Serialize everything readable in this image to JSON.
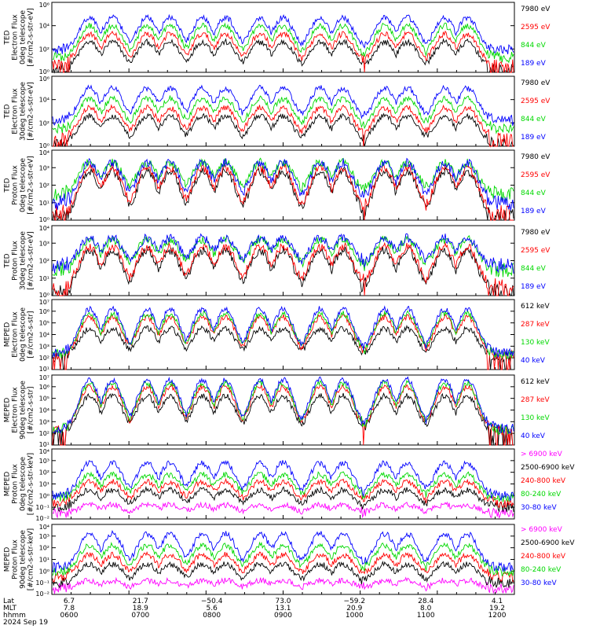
{
  "chart_data": {
    "type": "line",
    "panels": [
      {
        "ylabel": [
          "TED",
          "Electron Flux",
          "0deg telescope",
          "[#/cm2-s-str-eV]"
        ],
        "ylim": [
          1,
          1000000
        ],
        "ylog": true,
        "ytick_labels": [
          "10⁰",
          "10²",
          "10⁴",
          "10⁶"
        ],
        "series": [
          {
            "name": "7980 eV",
            "color": "#000000",
            "base": 0.3,
            "peak": 2.6
          },
          {
            "name": "2595 eV",
            "color": "#ff0000",
            "base": 0.7,
            "peak": 3.3
          },
          {
            "name": "844 eV",
            "color": "#00d800",
            "base": 1.3,
            "peak": 4.0
          },
          {
            "name": "189 eV",
            "color": "#0000ff",
            "base": 1.9,
            "peak": 4.7
          }
        ]
      },
      {
        "ylabel": [
          "TED",
          "Electron Flux",
          "30deg telescope",
          "[#/cm2-s-str-eV]"
        ],
        "ylim": [
          1,
          1000000
        ],
        "ylog": true,
        "ytick_labels": [
          "10⁰",
          "10²",
          "10⁴",
          "10⁶"
        ],
        "series": [
          {
            "name": "7980 eV",
            "color": "#000000",
            "base": 0.3,
            "peak": 2.6
          },
          {
            "name": "2595 eV",
            "color": "#ff0000",
            "base": 0.8,
            "peak": 3.3
          },
          {
            "name": "844 eV",
            "color": "#00d800",
            "base": 1.5,
            "peak": 4.1
          },
          {
            "name": "189 eV",
            "color": "#0000ff",
            "base": 2.2,
            "peak": 5.0
          }
        ]
      },
      {
        "ylabel": [
          "TED",
          "Proton Flux",
          "0deg telescope",
          "[#/cm2-s-str-eV]"
        ],
        "ylim": [
          1,
          10000
        ],
        "ylog": true,
        "ytick_labels": [
          "10⁰",
          "10¹",
          "10²",
          "10³",
          "10⁴"
        ],
        "series": [
          {
            "name": "7980 eV",
            "color": "#000000",
            "base": 0.2,
            "peak": 2.8
          },
          {
            "name": "2595 eV",
            "color": "#ff0000",
            "base": 0.4,
            "peak": 3.0
          },
          {
            "name": "844 eV",
            "color": "#00d800",
            "base": 1.5,
            "peak": 3.3
          },
          {
            "name": "189 eV",
            "color": "#0000ff",
            "base": 1.0,
            "peak": 3.3
          }
        ]
      },
      {
        "ylabel": [
          "TED",
          "Proton Flux",
          "30deg telescope",
          "[#/cm2-s-str-eV]"
        ],
        "ylim": [
          1,
          10000
        ],
        "ylog": true,
        "ytick_labels": [
          "10⁰",
          "10¹",
          "10²",
          "10³",
          "10⁴"
        ],
        "series": [
          {
            "name": "7980 eV",
            "color": "#000000",
            "base": 0.2,
            "peak": 2.6
          },
          {
            "name": "2595 eV",
            "color": "#ff0000",
            "base": 0.5,
            "peak": 2.8
          },
          {
            "name": "844 eV",
            "color": "#00d800",
            "base": 1.5,
            "peak": 3.2
          },
          {
            "name": "189 eV",
            "color": "#0000ff",
            "base": 1.7,
            "peak": 3.3
          }
        ]
      },
      {
        "ylabel": [
          "MEPED",
          "Electron Flux",
          "0deg telescope",
          "[#/cm2-s-str]"
        ],
        "ylim": [
          10,
          10000000
        ],
        "ylog": true,
        "ytick_labels": [
          "10¹",
          "10²",
          "10³",
          "10⁴",
          "10⁵",
          "10⁶",
          "10⁷"
        ],
        "series": [
          {
            "name": "612 keV",
            "color": "#000000",
            "base": 2.1,
            "peak": 4.5
          },
          {
            "name": "287 keV",
            "color": "#ff0000",
            "base": 2.2,
            "peak": 5.5
          },
          {
            "name": "130 keV",
            "color": "#00d800",
            "base": 2.3,
            "peak": 5.8
          },
          {
            "name": "40 keV",
            "color": "#0000ff",
            "base": 2.4,
            "peak": 6.2
          }
        ]
      },
      {
        "ylabel": [
          "MEPED",
          "Electron Flux",
          "90deg telescope",
          "[#/cm2-s-str]"
        ],
        "ylim": [
          10,
          10000000
        ],
        "ylog": true,
        "ytick_labels": [
          "10¹",
          "10²",
          "10³",
          "10⁴",
          "10⁵",
          "10⁶",
          "10⁷"
        ],
        "series": [
          {
            "name": "612 keV",
            "color": "#000000",
            "base": 2.1,
            "peak": 5.2
          },
          {
            "name": "287 keV",
            "color": "#ff0000",
            "base": 2.2,
            "peak": 6.0
          },
          {
            "name": "130 keV",
            "color": "#00d800",
            "base": 2.3,
            "peak": 6.3
          },
          {
            "name": "40 keV",
            "color": "#0000ff",
            "base": 2.4,
            "peak": 6.6
          }
        ]
      },
      {
        "ylabel": [
          "MEPED",
          "Proton Flux",
          "0deg telescope",
          "[#/cm2-s-str-keV]"
        ],
        "ylim": [
          0.01,
          10000
        ],
        "ylog": true,
        "ytick_labels": [
          "10⁻²",
          "10⁻¹",
          "10⁰",
          "10¹",
          "10²",
          "10³",
          "10⁴"
        ],
        "series": [
          {
            "name": "> 6900 keV",
            "color": "#ff00ff",
            "base": -1.5,
            "peak": -0.8
          },
          {
            "name": "2500-6900 keV",
            "color": "#000000",
            "base": -1.0,
            "peak": 0.5
          },
          {
            "name": "240-800 keV",
            "color": "#ff0000",
            "base": -0.6,
            "peak": 1.2
          },
          {
            "name": "80-240 keV",
            "color": "#00d800",
            "base": -0.2,
            "peak": 1.8
          },
          {
            "name": "30-80 keV",
            "color": "#0000ff",
            "base": 0.0,
            "peak": 2.8
          }
        ]
      },
      {
        "ylabel": [
          "MEPED",
          "Proton Flux",
          "90deg telescope",
          "[#/cm2-s-str-keV]"
        ],
        "ylim": [
          0.01,
          10000
        ],
        "ylog": true,
        "ytick_labels": [
          "10⁻²",
          "10⁻¹",
          "10⁰",
          "10¹",
          "10²",
          "10³",
          "10⁴"
        ],
        "series": [
          {
            "name": "> 6900 keV",
            "color": "#ff00ff",
            "base": -1.5,
            "peak": -0.8
          },
          {
            "name": "2500-6900 keV",
            "color": "#000000",
            "base": -1.0,
            "peak": 0.6
          },
          {
            "name": "240-800 keV",
            "color": "#ff0000",
            "base": -0.5,
            "peak": 1.4
          },
          {
            "name": "80-240 keV",
            "color": "#00d800",
            "base": 0.0,
            "peak": 2.2
          },
          {
            "name": "30-80 keV",
            "color": "#0000ff",
            "base": 0.3,
            "peak": 3.2
          }
        ]
      }
    ],
    "pass_centers": [
      0.08,
      0.13,
      0.205,
      0.255,
      0.325,
      0.375,
      0.45,
      0.5,
      0.58,
      0.63,
      0.72,
      0.77,
      0.85,
      0.9
    ],
    "x_axis": {
      "row_labels": [
        "Lat",
        "MLT",
        "hhmm",
        "2024 Sep 19"
      ],
      "ticks": [
        {
          "lat": "6.7",
          "mlt": "7.8",
          "hhmm": "0600"
        },
        {
          "lat": "21.7",
          "mlt": "18.9",
          "hhmm": "0700"
        },
        {
          "lat": "−50.4",
          "mlt": "5.6",
          "hhmm": "0800"
        },
        {
          "lat": "73.0",
          "mlt": "13.1",
          "hhmm": "0900"
        },
        {
          "lat": "−59.2",
          "mlt": "20.9",
          "hhmm": "1000"
        },
        {
          "lat": "28.4",
          "mlt": "8.0",
          "hhmm": "1100"
        },
        {
          "lat": "4.1",
          "mlt": "19.2",
          "hhmm": "1200"
        }
      ]
    }
  }
}
